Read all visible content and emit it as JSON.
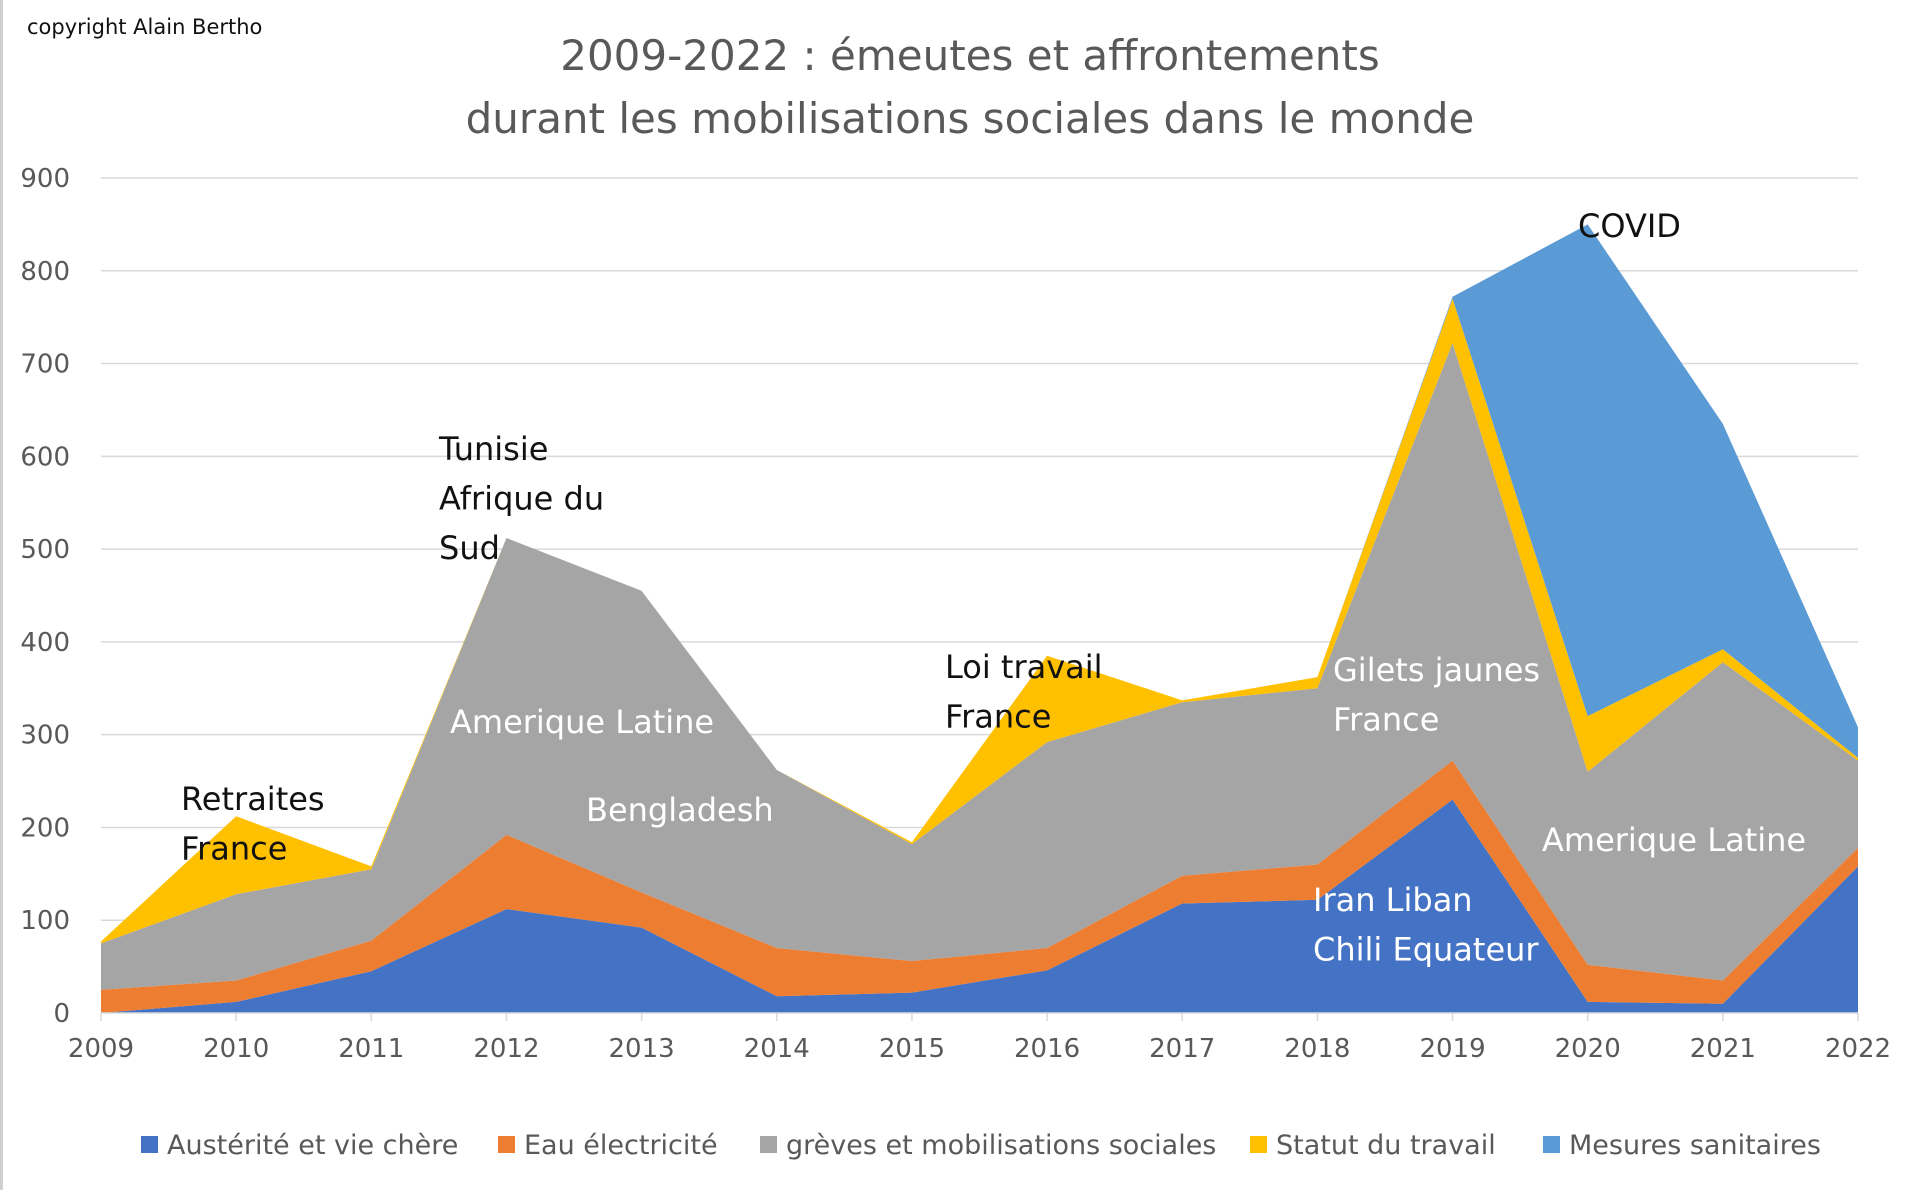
{
  "copyright": "copyright Alain Bertho",
  "chart_data": {
    "type": "area",
    "stacked": true,
    "title": [
      "2009-2022 : émeutes et affrontements",
      "durant les mobilisations sociales dans le monde"
    ],
    "xlabel": "",
    "ylabel": "",
    "ylim": [
      0,
      900
    ],
    "yticks": [
      0,
      100,
      200,
      300,
      400,
      500,
      600,
      700,
      800,
      900
    ],
    "grid": true,
    "legend_position": "bottom",
    "categories": [
      "2009",
      "2010",
      "2011",
      "2012",
      "2013",
      "2014",
      "2015",
      "2016",
      "2017",
      "2018",
      "2019",
      "2020",
      "2021",
      "2022"
    ],
    "series": [
      {
        "name": "Austérité et vie chère",
        "color": "#4472C4",
        "values": [
          0,
          12,
          45,
          112,
          92,
          18,
          22,
          46,
          118,
          122,
          230,
          12,
          10,
          158
        ]
      },
      {
        "name": "Eau électricité",
        "color": "#ED7D31",
        "values": [
          25,
          23,
          33,
          80,
          38,
          52,
          34,
          24,
          30,
          38,
          42,
          40,
          25,
          20
        ]
      },
      {
        "name": "grèves et mobilisations sociales",
        "color": "#A5A5A5",
        "values": [
          50,
          93,
          77,
          320,
          325,
          192,
          126,
          222,
          187,
          190,
          450,
          208,
          343,
          94
        ]
      },
      {
        "name": "Statut du travail",
        "color": "#FFC000",
        "values": [
          2,
          84,
          3,
          0,
          0,
          0,
          2,
          93,
          2,
          12,
          48,
          60,
          14,
          3
        ]
      },
      {
        "name": "Mesures sanitaires",
        "color": "#5B9BD5",
        "values": [
          0,
          0,
          0,
          0,
          0,
          0,
          0,
          0,
          0,
          0,
          2,
          530,
          243,
          33
        ]
      }
    ],
    "annotations": [
      {
        "lines": [
          "Retraites",
          "France"
        ],
        "style": "dark"
      },
      {
        "lines": [
          "Tunisie",
          "Afrique du",
          "Sud"
        ],
        "style": "dark"
      },
      {
        "lines": [
          "Amerique Latine"
        ],
        "style": "light"
      },
      {
        "lines": [
          "Bengladesh"
        ],
        "style": "light"
      },
      {
        "lines": [
          "Loi travail",
          "France"
        ],
        "style": "dark"
      },
      {
        "lines": [
          "Gilets jaunes",
          "France"
        ],
        "style": "light"
      },
      {
        "lines": [
          "COVID"
        ],
        "style": "dark"
      },
      {
        "lines": [
          "Amerique Latine"
        ],
        "style": "light"
      },
      {
        "lines": [
          "Iran Liban",
          "Chili Equateur"
        ],
        "style": "light"
      }
    ]
  }
}
